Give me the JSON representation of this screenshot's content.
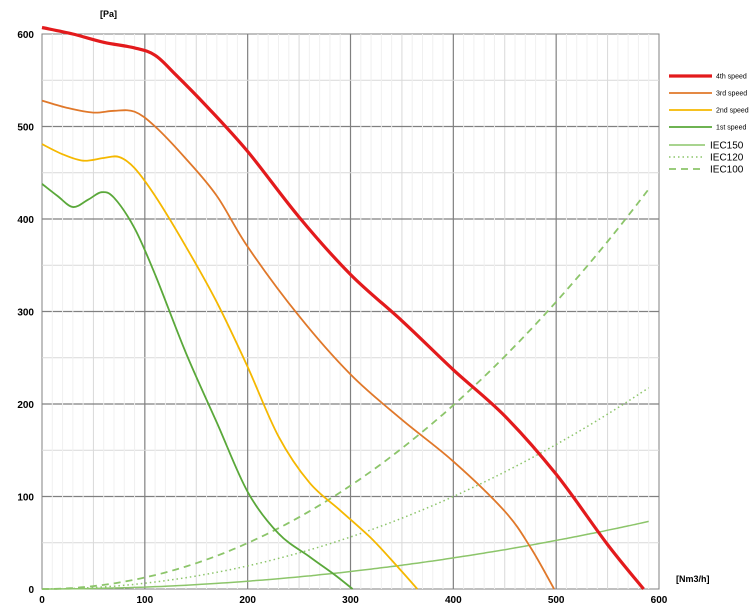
{
  "chart_data": {
    "type": "line",
    "ylabel": "[Pa]",
    "xlabel": "[Nm3/h]",
    "xlim": [
      0,
      600
    ],
    "ylim": [
      0,
      600
    ],
    "xticks": [
      "0",
      "100",
      "200",
      "300",
      "400",
      "500",
      "600"
    ],
    "yticks": [
      "0",
      "100",
      "200",
      "300",
      "400",
      "500",
      "600"
    ],
    "grid": true,
    "legend_position": "right",
    "series": [
      {
        "name": "4th speed",
        "color": "#e31a1c",
        "style": "solid-thick",
        "points": [
          [
            0,
            607
          ],
          [
            30,
            600
          ],
          [
            60,
            591
          ],
          [
            90,
            585
          ],
          [
            110,
            577
          ],
          [
            130,
            556
          ],
          [
            160,
            522
          ],
          [
            200,
            473
          ],
          [
            250,
            402
          ],
          [
            300,
            340
          ],
          [
            350,
            290
          ],
          [
            400,
            237
          ],
          [
            450,
            187
          ],
          [
            500,
            124
          ],
          [
            550,
            48
          ],
          [
            585,
            0
          ]
        ]
      },
      {
        "name": "3rd speed",
        "color": "#e0782a",
        "style": "solid",
        "points": [
          [
            0,
            528
          ],
          [
            25,
            520
          ],
          [
            50,
            515
          ],
          [
            70,
            517
          ],
          [
            90,
            516
          ],
          [
            110,
            500
          ],
          [
            140,
            465
          ],
          [
            170,
            425
          ],
          [
            200,
            370
          ],
          [
            250,
            295
          ],
          [
            300,
            232
          ],
          [
            350,
            183
          ],
          [
            400,
            138
          ],
          [
            450,
            84
          ],
          [
            475,
            45
          ],
          [
            498,
            0
          ]
        ]
      },
      {
        "name": "2nd speed",
        "color": "#f5b800",
        "style": "solid",
        "points": [
          [
            0,
            481
          ],
          [
            20,
            470
          ],
          [
            40,
            463
          ],
          [
            60,
            466
          ],
          [
            75,
            467
          ],
          [
            90,
            455
          ],
          [
            110,
            425
          ],
          [
            140,
            370
          ],
          [
            170,
            310
          ],
          [
            200,
            240
          ],
          [
            230,
            165
          ],
          [
            260,
            115
          ],
          [
            290,
            85
          ],
          [
            320,
            55
          ],
          [
            345,
            25
          ],
          [
            365,
            0
          ]
        ]
      },
      {
        "name": "1st speed",
        "color": "#5aa83a",
        "style": "solid",
        "points": [
          [
            0,
            438
          ],
          [
            15,
            425
          ],
          [
            30,
            413
          ],
          [
            45,
            421
          ],
          [
            58,
            429
          ],
          [
            70,
            423
          ],
          [
            90,
            390
          ],
          [
            110,
            340
          ],
          [
            140,
            255
          ],
          [
            170,
            180
          ],
          [
            200,
            105
          ],
          [
            230,
            60
          ],
          [
            260,
            35
          ],
          [
            285,
            15
          ],
          [
            302,
            0
          ]
        ]
      },
      {
        "name": "IEC150",
        "color": "#8cc56a",
        "style": "solid-thin",
        "k": 0.00021
      },
      {
        "name": "IEC120",
        "color": "#8cc56a",
        "style": "dotted",
        "k": 0.000625
      },
      {
        "name": "IEC100",
        "color": "#8cc56a",
        "style": "dashed",
        "k": 0.001242
      }
    ]
  }
}
